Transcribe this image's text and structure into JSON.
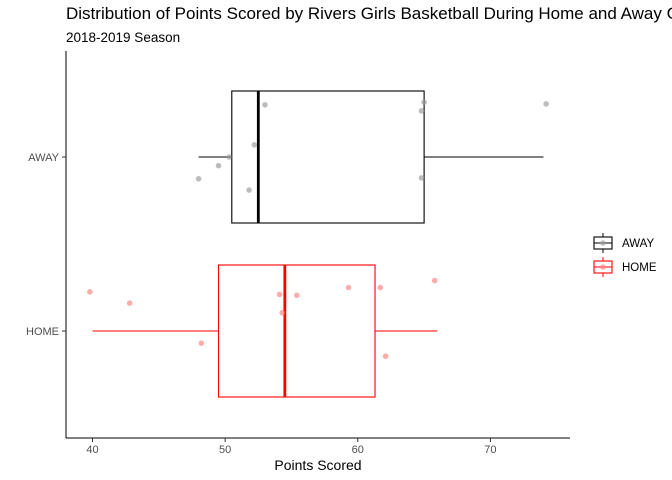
{
  "chart_data": {
    "type": "boxplot",
    "title": "Distribution of Points Scored by Rivers Girls Basketball During Home and Away Games",
    "subtitle": "2018-2019 Season",
    "xlabel": "Points Scored",
    "ylabel": "",
    "xlim": [
      38,
      76
    ],
    "x_ticks": [
      40,
      50,
      60,
      70
    ],
    "categories": [
      "AWAY",
      "HOME"
    ],
    "grid": false,
    "legend_position": "right",
    "series": [
      {
        "name": "AWAY",
        "color": "#000000",
        "point_color": "#999999",
        "box": {
          "whisker_low": 48,
          "q1": 50.5,
          "median": 52.5,
          "q3": 65,
          "whisker_high": 74
        },
        "points": [
          {
            "x": 48,
            "jitter": -0.25
          },
          {
            "x": 49.5,
            "jitter": -0.1
          },
          {
            "x": 50.3,
            "jitter": 0.0
          },
          {
            "x": 51.8,
            "jitter": -0.38
          },
          {
            "x": 52.2,
            "jitter": 0.14
          },
          {
            "x": 53,
            "jitter": 0.6
          },
          {
            "x": 64.8,
            "jitter": 0.53
          },
          {
            "x": 65,
            "jitter": 0.63
          },
          {
            "x": 64.8,
            "jitter": -0.24
          },
          {
            "x": 74.2,
            "jitter": 0.61
          }
        ]
      },
      {
        "name": "HOME",
        "color": "#ff0000",
        "point_color": "#ff8080",
        "box": {
          "whisker_low": 40,
          "q1": 49.5,
          "median": 54.5,
          "q3": 61.3,
          "whisker_high": 66
        },
        "points": [
          {
            "x": 39.8,
            "jitter": 0.45
          },
          {
            "x": 42.8,
            "jitter": 0.32
          },
          {
            "x": 48.2,
            "jitter": -0.14
          },
          {
            "x": 54.1,
            "jitter": 0.42
          },
          {
            "x": 54.3,
            "jitter": 0.21
          },
          {
            "x": 55.4,
            "jitter": 0.41
          },
          {
            "x": 59.3,
            "jitter": 0.5
          },
          {
            "x": 61.7,
            "jitter": 0.5
          },
          {
            "x": 62.1,
            "jitter": -0.29
          },
          {
            "x": 65.8,
            "jitter": 0.58
          }
        ]
      }
    ]
  }
}
